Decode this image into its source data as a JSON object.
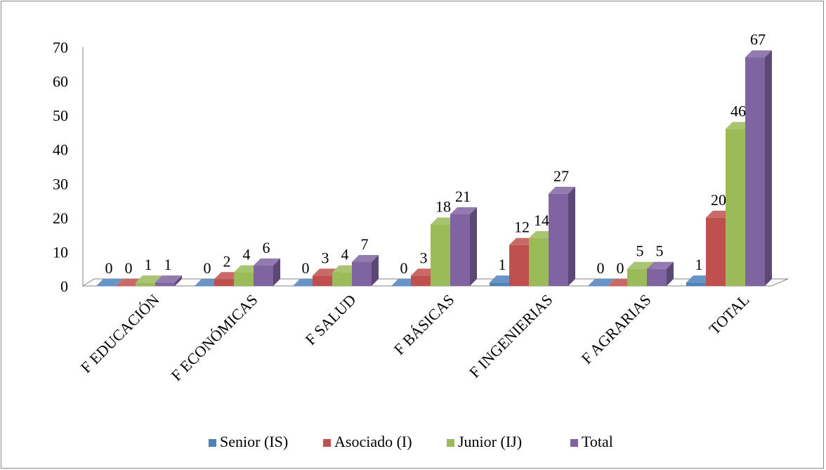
{
  "chart_data": {
    "type": "bar",
    "categories": [
      "F EDUCACIÓN",
      "F ECONÓMICAS",
      "F SALUD",
      "F BÁSICAS",
      "F INGENIERIAS",
      "F AGRARIAS",
      "TOTAL"
    ],
    "series": [
      {
        "name": "Senior (IS)",
        "color": "#4f81bd",
        "values": [
          0,
          0,
          0,
          0,
          1,
          0,
          1
        ]
      },
      {
        "name": "Asociado (I)",
        "color": "#c0504d",
        "values": [
          0,
          2,
          3,
          3,
          12,
          0,
          20
        ]
      },
      {
        "name": "Junior (IJ)",
        "color": "#9bbb59",
        "values": [
          1,
          4,
          4,
          18,
          14,
          5,
          46
        ]
      },
      {
        "name": "Total",
        "color": "#8064a2",
        "values": [
          1,
          6,
          7,
          21,
          27,
          5,
          67
        ]
      }
    ],
    "y_ticks": [
      "0",
      "10",
      "20",
      "30",
      "40",
      "50",
      "60",
      "70"
    ],
    "ylim": [
      0,
      70
    ],
    "legend_position": "bottom",
    "style": "3d-clustered-column"
  }
}
